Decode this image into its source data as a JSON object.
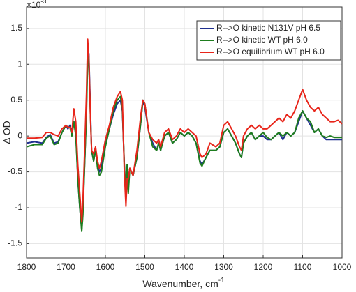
{
  "chart_data": {
    "type": "line",
    "x_label": "Wavenumber, cm",
    "x_label_exponent": "-1",
    "y_label": "Δ OD",
    "y_multiplier": "×10",
    "y_multiplier_exponent": "-3",
    "x": [
      1800,
      1780,
      1760,
      1750,
      1740,
      1730,
      1720,
      1710,
      1700,
      1695,
      1690,
      1685,
      1680,
      1675,
      1670,
      1665,
      1660,
      1657,
      1652,
      1648,
      1645,
      1642,
      1638,
      1635,
      1630,
      1625,
      1620,
      1615,
      1610,
      1600,
      1590,
      1580,
      1570,
      1562,
      1557,
      1552,
      1548,
      1545,
      1542,
      1538,
      1530,
      1520,
      1510,
      1505,
      1500,
      1490,
      1480,
      1470,
      1465,
      1460,
      1450,
      1440,
      1430,
      1420,
      1410,
      1400,
      1390,
      1380,
      1370,
      1360,
      1355,
      1345,
      1335,
      1320,
      1310,
      1300,
      1290,
      1280,
      1270,
      1260,
      1255,
      1250,
      1240,
      1230,
      1220,
      1210,
      1200,
      1190,
      1180,
      1170,
      1160,
      1150,
      1140,
      1130,
      1120,
      1110,
      1100,
      1090,
      1080,
      1070,
      1060,
      1050,
      1040,
      1030,
      1020,
      1010,
      1000
    ],
    "series": [
      {
        "name": "R-->O kinetic N131V pH 6.5",
        "color": "#1f2f8f",
        "values": [
          -0.1,
          -0.08,
          -0.1,
          -0.02,
          0.02,
          -0.1,
          -0.08,
          0.05,
          0.15,
          0.1,
          0.15,
          0.05,
          0.2,
          0.05,
          -0.6,
          -1.0,
          -1.3,
          -1.0,
          -0.3,
          0.4,
          1.2,
          1.15,
          0.4,
          -0.2,
          -0.35,
          -0.2,
          -0.4,
          -0.5,
          -0.45,
          -0.1,
          0.1,
          0.3,
          0.45,
          0.5,
          0.35,
          -0.4,
          -0.8,
          -0.5,
          -0.6,
          -0.45,
          -0.55,
          -0.3,
          0.2,
          0.5,
          0.4,
          0.05,
          -0.1,
          -0.2,
          -0.1,
          -0.2,
          0.0,
          0.05,
          -0.1,
          -0.05,
          0.05,
          0.0,
          0.05,
          0.0,
          -0.1,
          -0.35,
          -0.4,
          -0.3,
          -0.2,
          -0.2,
          -0.15,
          0.05,
          0.1,
          0.0,
          -0.1,
          -0.25,
          -0.3,
          -0.1,
          0.0,
          0.05,
          -0.05,
          0.0,
          0.0,
          -0.05,
          -0.05,
          0.0,
          0.05,
          -0.05,
          0.05,
          0.0,
          0.05,
          0.2,
          0.35,
          0.25,
          0.15,
          0.05,
          0.1,
          0.0,
          -0.05,
          -0.05,
          -0.05,
          -0.05,
          -0.05
        ]
      },
      {
        "name": "R-->O kinetic WT pH 6.0",
        "color": "#1e7d1e",
        "values": [
          -0.15,
          -0.12,
          -0.12,
          -0.03,
          0.0,
          -0.12,
          -0.1,
          0.05,
          0.15,
          0.12,
          0.12,
          0.0,
          0.2,
          0.0,
          -0.6,
          -1.0,
          -1.33,
          -1.1,
          -0.3,
          0.3,
          1.1,
          1.0,
          0.3,
          -0.2,
          -0.35,
          -0.2,
          -0.45,
          -0.55,
          -0.5,
          -0.15,
          0.1,
          0.35,
          0.5,
          0.55,
          0.4,
          -0.4,
          -0.85,
          -0.4,
          -0.8,
          -0.45,
          -0.55,
          -0.3,
          0.2,
          0.5,
          0.45,
          0.05,
          -0.15,
          -0.2,
          -0.1,
          -0.2,
          0.0,
          0.05,
          -0.1,
          -0.05,
          0.05,
          0.0,
          0.05,
          0.0,
          -0.1,
          -0.38,
          -0.42,
          -0.3,
          -0.2,
          -0.2,
          -0.15,
          0.05,
          0.1,
          0.0,
          -0.1,
          -0.25,
          -0.3,
          -0.1,
          0.0,
          0.05,
          -0.05,
          0.0,
          0.05,
          -0.02,
          -0.05,
          0.0,
          0.05,
          0.0,
          0.05,
          0.0,
          0.05,
          0.25,
          0.35,
          0.25,
          0.2,
          0.05,
          0.1,
          0.0,
          -0.02,
          0.0,
          -0.02,
          -0.02,
          -0.02
        ]
      },
      {
        "name": "R-->O equilibrium WT pH 6.0",
        "color": "#e8251a",
        "values": [
          -0.03,
          -0.03,
          -0.02,
          0.05,
          0.05,
          0.02,
          0.0,
          0.1,
          0.15,
          0.12,
          0.12,
          0.05,
          0.38,
          0.2,
          -0.4,
          -0.8,
          -1.2,
          -0.9,
          -0.1,
          0.6,
          1.35,
          1.1,
          0.3,
          -0.2,
          -0.25,
          -0.15,
          -0.35,
          -0.45,
          -0.35,
          -0.05,
          0.15,
          0.4,
          0.55,
          0.62,
          0.5,
          -0.5,
          -0.98,
          -0.6,
          -0.6,
          -0.45,
          -0.55,
          -0.2,
          0.3,
          0.5,
          0.45,
          0.05,
          -0.05,
          -0.1,
          -0.05,
          -0.15,
          0.05,
          0.1,
          -0.05,
          0.0,
          0.1,
          0.05,
          0.1,
          0.05,
          0.0,
          -0.25,
          -0.3,
          -0.25,
          -0.1,
          -0.15,
          -0.1,
          0.15,
          0.2,
          0.1,
          0.0,
          -0.15,
          -0.2,
          0.0,
          0.1,
          0.15,
          0.1,
          0.15,
          0.1,
          0.1,
          0.15,
          0.2,
          0.25,
          0.2,
          0.3,
          0.25,
          0.35,
          0.5,
          0.65,
          0.5,
          0.4,
          0.35,
          0.4,
          0.3,
          0.25,
          0.2,
          0.2,
          0.22,
          0.17
        ]
      }
    ],
    "xlim": [
      1800,
      1000
    ],
    "xticks": [
      1800,
      1700,
      1600,
      1500,
      1400,
      1300,
      1200,
      1100,
      1000
    ],
    "ylim": [
      -1.7,
      1.8
    ],
    "yticks": [
      -1.5,
      -1,
      -0.5,
      0,
      0.5,
      1,
      1.5
    ],
    "grid": true,
    "legend": "upper right"
  }
}
